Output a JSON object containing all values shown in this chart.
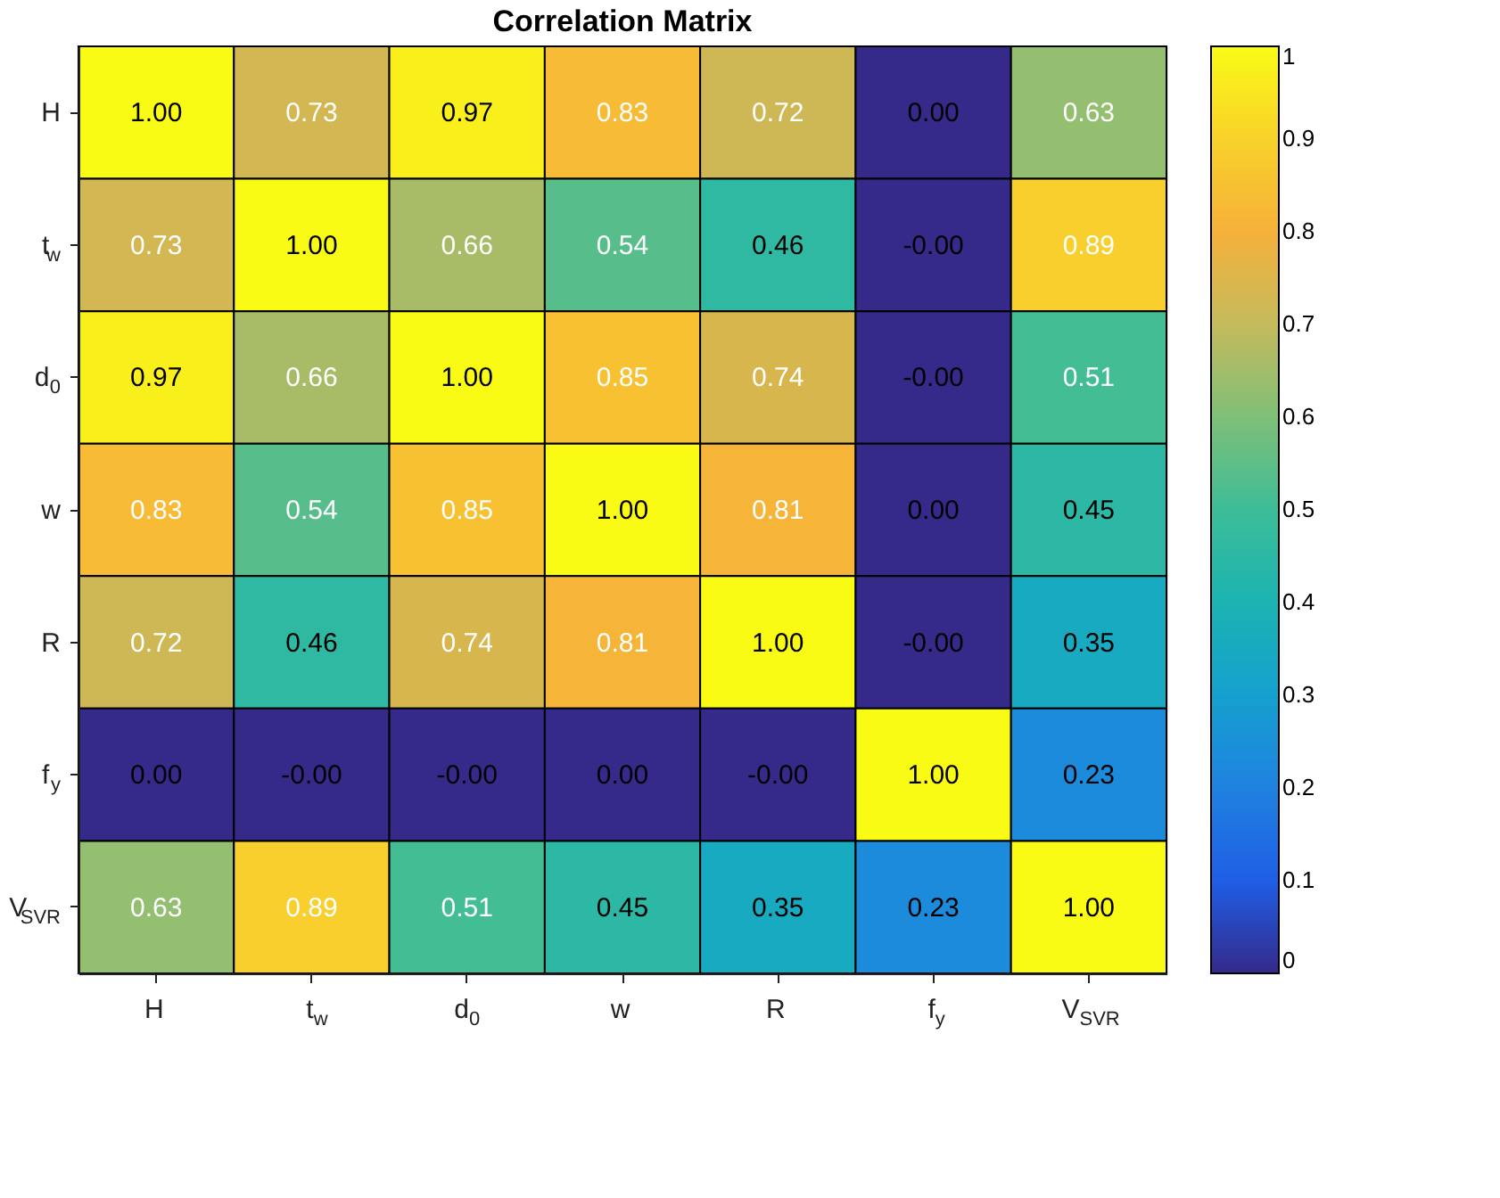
{
  "chart_data": {
    "type": "heatmap",
    "title": "Correlation Matrix",
    "categories": [
      "H",
      "t$_{w}$",
      "d$_{0}$",
      "w",
      "R",
      "f$_{y}$",
      "V$_{SVR}$"
    ],
    "y_categories": [
      "H",
      "t$_{w}$",
      "d$_{0}$",
      "w",
      "R",
      "f$_{y}$",
      "V$_{SVR}$"
    ],
    "cells": [
      [
        1.0,
        0.73,
        0.97,
        0.83,
        0.72,
        0.0,
        0.63
      ],
      [
        0.73,
        1.0,
        0.66,
        0.54,
        0.46,
        0.0,
        0.89
      ],
      [
        0.97,
        0.66,
        1.0,
        0.85,
        0.74,
        0.0,
        0.51
      ],
      [
        0.83,
        0.54,
        0.85,
        1.0,
        0.81,
        0.0,
        0.45
      ],
      [
        0.72,
        0.46,
        0.74,
        0.81,
        1.0,
        0.0,
        0.35
      ],
      [
        0.0,
        0.0,
        0.0,
        0.0,
        0.0,
        1.0,
        0.23
      ],
      [
        0.63,
        0.89,
        0.51,
        0.45,
        0.35,
        0.23,
        1.0
      ]
    ],
    "cell_labels": [
      [
        "1.00",
        "0.73",
        "0.97",
        "0.83",
        "0.72",
        "0.00",
        "0.63"
      ],
      [
        "0.73",
        "1.00",
        "0.66",
        "0.54",
        "0.46",
        "-0.00",
        "0.89"
      ],
      [
        "0.97",
        "0.66",
        "1.00",
        "0.85",
        "0.74",
        "-0.00",
        "0.51"
      ],
      [
        "0.83",
        "0.54",
        "0.85",
        "1.00",
        "0.81",
        "0.00",
        "0.45"
      ],
      [
        "0.72",
        "0.46",
        "0.74",
        "0.81",
        "1.00",
        "-0.00",
        "0.35"
      ],
      [
        "0.00",
        "-0.00",
        "-0.00",
        "0.00",
        "-0.00",
        "1.00",
        "0.23"
      ],
      [
        "0.63",
        "0.89",
        "0.51",
        "0.45",
        "0.35",
        "0.23",
        "1.00"
      ]
    ],
    "clim": [
      0,
      1
    ],
    "cticks": [
      0,
      0.1,
      0.2,
      0.3,
      0.4,
      0.5,
      0.6,
      0.7,
      0.8,
      0.9,
      1
    ]
  }
}
